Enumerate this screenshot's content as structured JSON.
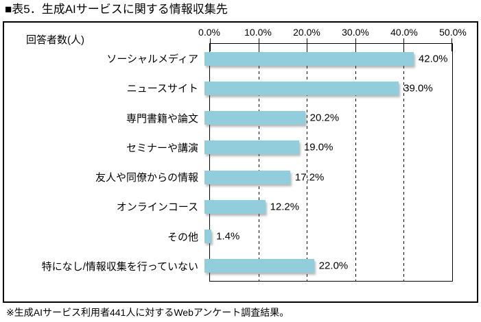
{
  "title": "■表5．生成AIサービスに関する情報収集先",
  "footnote": "※生成AIサービス利用者441人に対するWebアンケート調査結果。",
  "axis": {
    "unit_label": "回答者数(人)"
  },
  "colors": {
    "bar_fill": "#92CDDC",
    "axis_line": "#000000",
    "text": "#000000",
    "background": "#ffffff"
  },
  "chart_data": {
    "type": "bar",
    "orientation": "horizontal",
    "title": "表5．生成AIサービスに関する情報収集先",
    "categories": [
      "ソーシャルメディア",
      "ニュースサイト",
      "専門書籍や論文",
      "セミナーや講演",
      "友人や同僚からの情報",
      "オンラインコース",
      "その他",
      "特になし/情報収集を行っていない"
    ],
    "values": [
      42.0,
      39.0,
      20.2,
      19.0,
      17.2,
      12.2,
      1.4,
      22.0
    ],
    "value_labels": [
      "42.0%",
      "39.0%",
      "20.2%",
      "19.0%",
      "17.2%",
      "12.2%",
      "1.4%",
      "22.0%"
    ],
    "x_ticks": [
      "0.0%",
      "10.0%",
      "20.0%",
      "30.0%",
      "40.0%",
      "50.0%"
    ],
    "x_tick_values": [
      0,
      10,
      20,
      30,
      40,
      50
    ],
    "xlim": [
      0,
      50
    ],
    "xlabel": "",
    "ylabel": "回答者数(人)",
    "grid": "dashed-vertical",
    "legend": "none",
    "bar_color": "#92CDDC"
  }
}
